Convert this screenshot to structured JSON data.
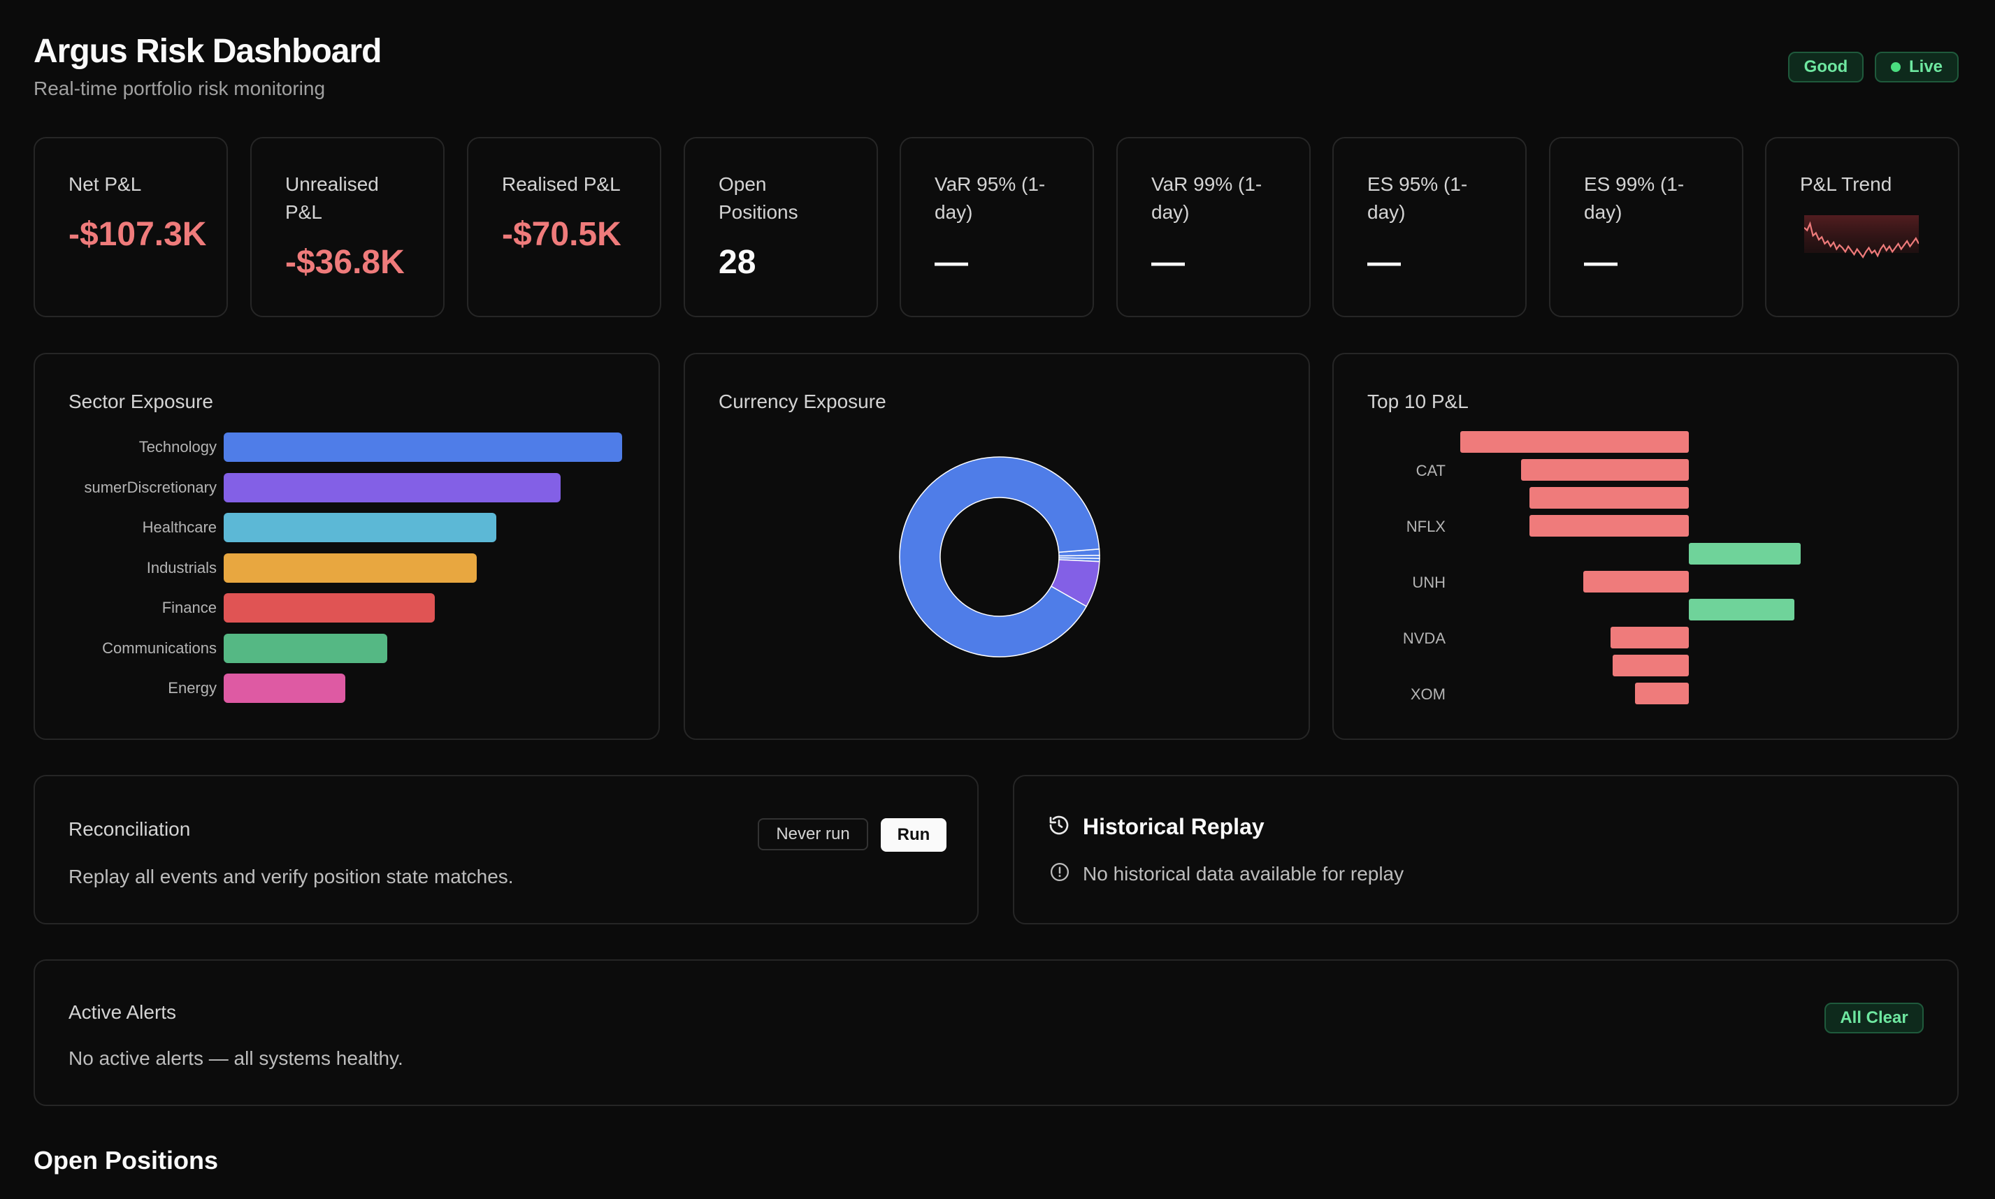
{
  "header": {
    "title": "Argus Risk Dashboard",
    "subtitle": "Real-time portfolio risk monitoring",
    "status_badge": "Good",
    "live_badge": "Live"
  },
  "kpis": [
    {
      "label": "Net P&L",
      "value": "-$107.3K"
    },
    {
      "label": "Unrealised P&L",
      "value": "-$36.8K"
    },
    {
      "label": "Realised P&L",
      "value": "-$70.5K"
    },
    {
      "label": "Open Positions",
      "value": "28"
    },
    {
      "label": "VaR 95% (1-day)",
      "value": "—"
    },
    {
      "label": "VaR 99% (1-day)",
      "value": "—"
    },
    {
      "label": "ES 95% (1-day)",
      "value": "—"
    },
    {
      "label": "ES 99% (1-day)",
      "value": "—"
    },
    {
      "label": "P&L Trend",
      "value": ""
    }
  ],
  "colors": {
    "negative": "#ef7b7b",
    "positive": "#6fd39a",
    "accent_blue": "#4f7de8",
    "accent_purple": "#8360e6"
  },
  "sparkline": {
    "values": [
      0,
      -2,
      3,
      -6,
      -4,
      -9,
      -7,
      -12,
      -10,
      -14,
      -11,
      -16,
      -13,
      -15,
      -18,
      -14,
      -17,
      -20,
      -16,
      -19,
      -22,
      -18,
      -15,
      -19,
      -17,
      -21,
      -16,
      -13,
      -17,
      -14,
      -18,
      -15,
      -12,
      -16,
      -13,
      -10,
      -14,
      -11,
      -8,
      -12
    ]
  },
  "sector_exposure": {
    "title": "Sector Exposure",
    "chart_data": {
      "type": "bar",
      "orientation": "horizontal",
      "categories": [
        "Technology",
        "sumerDiscretionary",
        "Healthcare",
        "Industrials",
        "Finance",
        "Communications",
        "Energy"
      ],
      "values": [
        100,
        84.5,
        68.5,
        63.5,
        53,
        41,
        30.5
      ],
      "colors": [
        "#4f7de8",
        "#8360e6",
        "#5cb8d6",
        "#e8a740",
        "#e05454",
        "#55b884",
        "#de5aa3"
      ]
    }
  },
  "currency_exposure": {
    "title": "Currency Exposure",
    "chart_data": {
      "type": "pie",
      "donut": true,
      "values": [
        90.5,
        7.5,
        1,
        0.5,
        0.5
      ],
      "colors": [
        "#4f7de8",
        "#8360e6",
        "#4f7de8",
        "#4f7de8",
        "#4f7de8"
      ]
    }
  },
  "top_pnl": {
    "title": "Top 10 P&L",
    "chart_data": {
      "type": "bar",
      "orientation": "horizontal",
      "categories": [
        "",
        "CAT",
        "",
        "NFLX",
        "",
        "UNH",
        "",
        "NVDA",
        "",
        "XOM"
      ],
      "values": [
        -10.2,
        -7.5,
        -7.1,
        -7.1,
        5.0,
        -4.7,
        4.7,
        -3.5,
        -3.4,
        -2.4
      ],
      "xlim": [
        -10.2,
        5.0
      ]
    }
  },
  "reconciliation": {
    "title": "Reconciliation",
    "status_button": "Never run",
    "run_button": "Run",
    "description": "Replay all events and verify position state matches."
  },
  "historical_replay": {
    "title": "Historical Replay",
    "message": "No historical data available for replay"
  },
  "alerts": {
    "title": "Active Alerts",
    "badge": "All Clear",
    "message": "No active alerts — all systems healthy."
  },
  "open_positions": {
    "heading": "Open Positions"
  }
}
